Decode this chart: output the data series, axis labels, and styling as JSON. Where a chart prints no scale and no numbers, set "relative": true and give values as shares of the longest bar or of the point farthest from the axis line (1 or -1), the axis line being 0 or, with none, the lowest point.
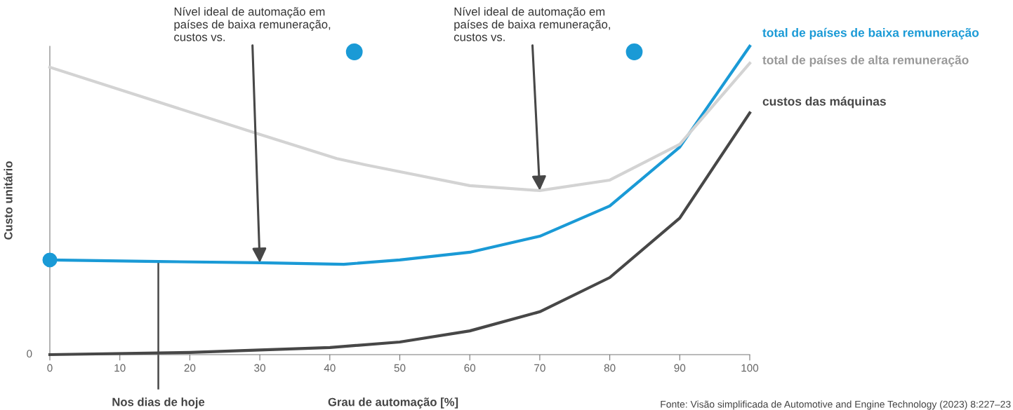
{
  "chart_data": {
    "type": "line",
    "relative": true,
    "xlabel": "Grau de automação [%]",
    "ylabel": "Custo unitário",
    "xlim": [
      0,
      100
    ],
    "xticks": [
      0,
      10,
      20,
      30,
      40,
      50,
      60,
      70,
      80,
      90,
      100
    ],
    "series": [
      {
        "name": "total de países de baixa remuneração",
        "color": "#1a9ad6",
        "x": [
          0,
          15.5,
          30,
          42,
          50,
          60,
          70,
          80,
          90,
          100
        ],
        "values": [
          0.307,
          0.302,
          0.298,
          0.293,
          0.307,
          0.332,
          0.384,
          0.482,
          0.673,
          1.0
        ]
      },
      {
        "name": "total de países de alta remuneração",
        "color": "#d3d3d3",
        "x": [
          0,
          30,
          41,
          45,
          60,
          70,
          80,
          90,
          100
        ],
        "values": [
          0.932,
          0.714,
          0.636,
          0.616,
          0.548,
          0.532,
          0.566,
          0.682,
          0.945
        ]
      },
      {
        "name": "custos das máquinas",
        "color": "#474747",
        "x": [
          0,
          20,
          40,
          50,
          60,
          70,
          80,
          90,
          100
        ],
        "values": [
          0.0,
          0.007,
          0.023,
          0.041,
          0.077,
          0.139,
          0.25,
          0.443,
          0.784
        ]
      },
      {
        "type": "scatter",
        "color": "#1a9ad6",
        "x": [
          0
        ],
        "values": [
          0.307
        ]
      }
    ],
    "ref_lines": [
      {
        "axis": "x",
        "value": 15.5,
        "label": "Nos dias de hoje",
        "color": "#474747"
      }
    ],
    "annotations": [
      {
        "text": "Nível ideal de automação em\npaíses de baixa remuneração,\ncustos vs.",
        "x": 30,
        "y": 0.298
      },
      {
        "text": "Nível ideal de automação em\npaíses de baixa remuneração,\ncustos vs.",
        "x": 70,
        "y": 0.532
      },
      "0",
      "Fonte: Visão simplificada de Automotive and Engine Technology (2023) 8:227–23"
    ],
    "legend": false,
    "grid": false
  }
}
